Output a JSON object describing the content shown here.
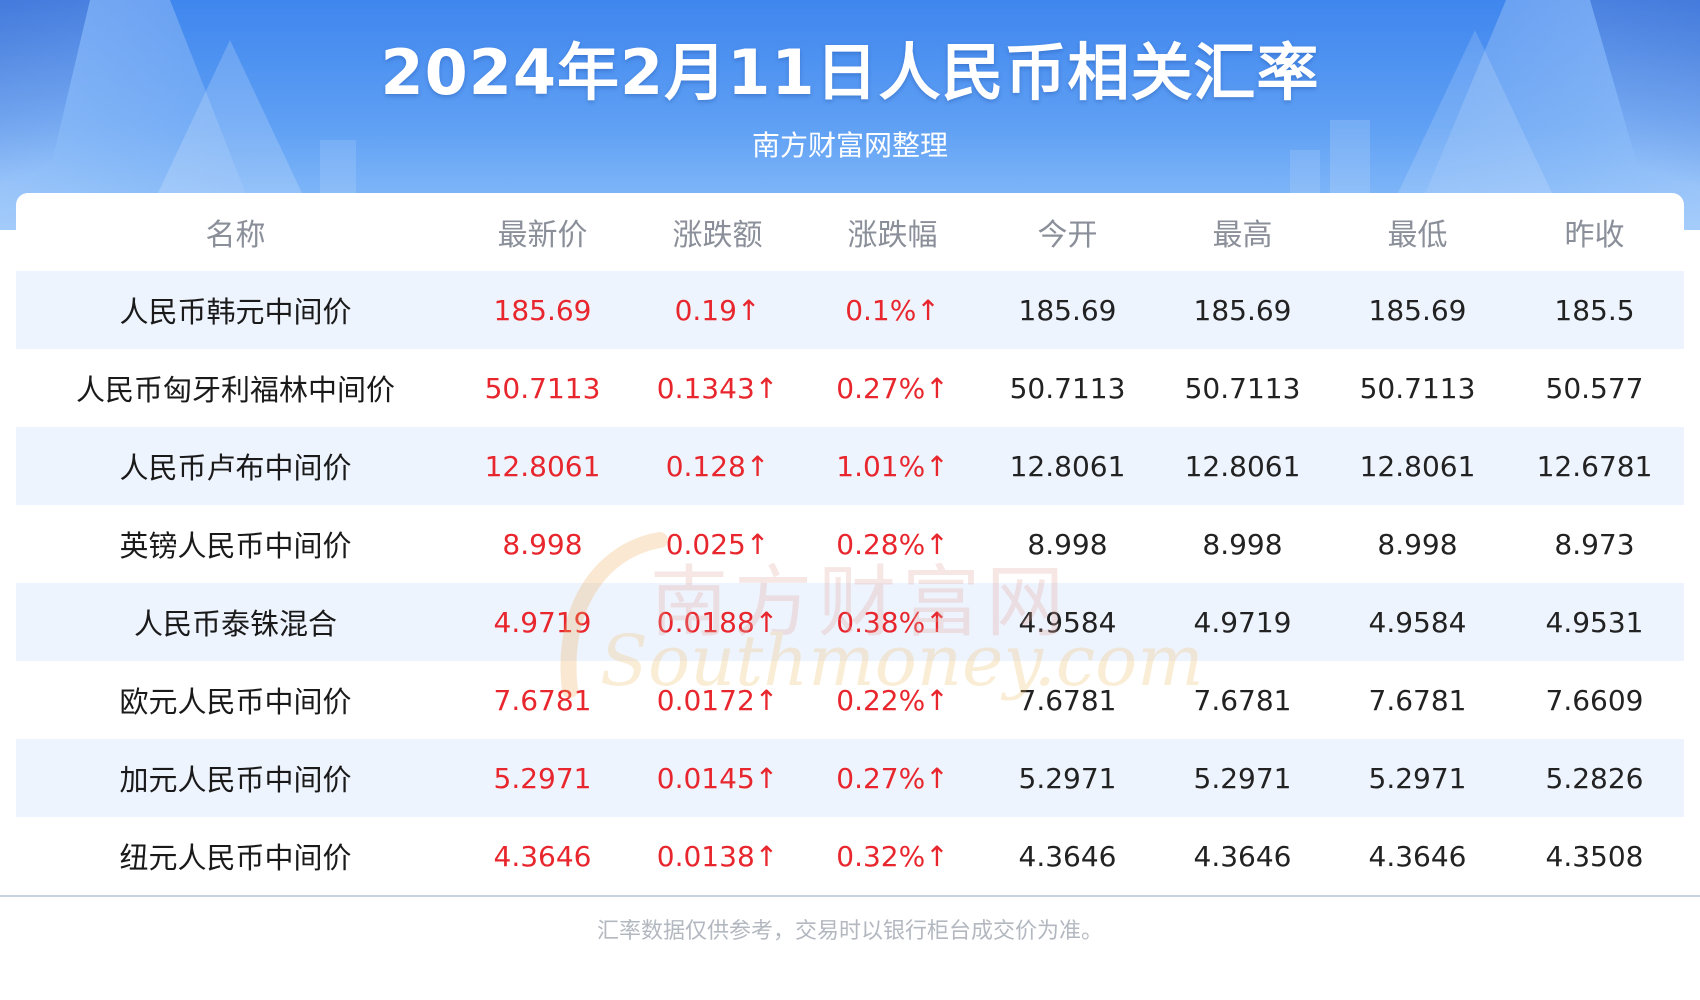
{
  "header": {
    "title": "2024年2月11日人民币相关汇率",
    "subtitle": "南方财富网整理"
  },
  "table": {
    "columns": [
      "名称",
      "最新价",
      "涨跌额",
      "涨跌幅",
      "今开",
      "最高",
      "最低",
      "昨收"
    ],
    "rows": [
      [
        "人民币韩元中间价",
        "185.69",
        "0.19↑",
        "0.1%↑",
        "185.69",
        "185.69",
        "185.69",
        "185.5"
      ],
      [
        "人民币匈牙利福林中间价",
        "50.7113",
        "0.1343↑",
        "0.27%↑",
        "50.7113",
        "50.7113",
        "50.7113",
        "50.577"
      ],
      [
        "人民币卢布中间价",
        "12.8061",
        "0.128↑",
        "1.01%↑",
        "12.8061",
        "12.8061",
        "12.8061",
        "12.6781"
      ],
      [
        "英镑人民币中间价",
        "8.998",
        "0.025↑",
        "0.28%↑",
        "8.998",
        "8.998",
        "8.998",
        "8.973"
      ],
      [
        "人民币泰铢混合",
        "4.9719",
        "0.0188↑",
        "0.38%↑",
        "4.9584",
        "4.9719",
        "4.9584",
        "4.9531"
      ],
      [
        "欧元人民币中间价",
        "7.6781",
        "0.0172↑",
        "0.22%↑",
        "7.6781",
        "7.6781",
        "7.6781",
        "7.6609"
      ],
      [
        "加元人民币中间价",
        "5.2971",
        "0.0145↑",
        "0.27%↑",
        "5.2971",
        "5.2971",
        "5.2971",
        "5.2826"
      ],
      [
        "纽元人民币中间价",
        "4.3646",
        "0.0138↑",
        "0.32%↑",
        "4.3646",
        "4.3646",
        "4.3646",
        "4.3508"
      ]
    ]
  },
  "watermark": {
    "cn": "南方财富网",
    "en": "Southmoney.com"
  },
  "footnote": "汇率数据仅供参考，交易时以银行柜台成交价为准。",
  "colors": {
    "header_blue": "#3f86ee",
    "up_red": "#e8262d",
    "row_alt": "#eef4fe"
  }
}
